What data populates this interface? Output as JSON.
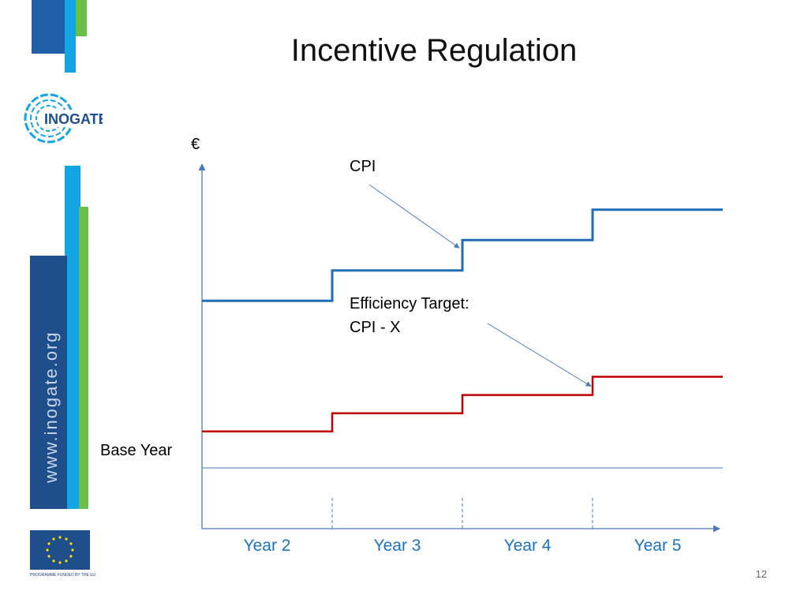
{
  "slide": {
    "title": "Incentive Regulation",
    "page_number": "12"
  },
  "sidebar": {
    "logo_text": "INOGATE",
    "website": "www.inogate.org",
    "eu_caption": "PROGRAMME FUNDED BY THE EU",
    "colors": {
      "dark_blue": "#1f5fa8",
      "light_blue": "#13a5e3",
      "green": "#6abf4b",
      "navy": "#1f4f8a"
    }
  },
  "chart_data": {
    "type": "line",
    "title": "Incentive Regulation",
    "ylabel": "€",
    "xlabel": "",
    "categories": [
      "Year 2",
      "Year 3",
      "Year 4",
      "Year 5"
    ],
    "reference_line": {
      "label": "Base Year",
      "value": 1.0
    },
    "series": [
      {
        "name": "CPI",
        "color": "#1f6eb5",
        "values": [
          1.55,
          1.65,
          1.75,
          1.85
        ]
      },
      {
        "name": "Efficiency Target: CPI - X",
        "color": "#c00000",
        "values": [
          1.12,
          1.18,
          1.24,
          1.3
        ]
      }
    ],
    "annotations": [
      {
        "text": "CPI",
        "target_series": "CPI",
        "target_step": 2
      },
      {
        "text_lines": [
          "Efficiency Target:",
          "CPI - X"
        ],
        "target_series": "Efficiency Target: CPI - X",
        "target_step": 3
      }
    ],
    "ylim": [
      0.8,
      2.0
    ],
    "grid": false
  }
}
